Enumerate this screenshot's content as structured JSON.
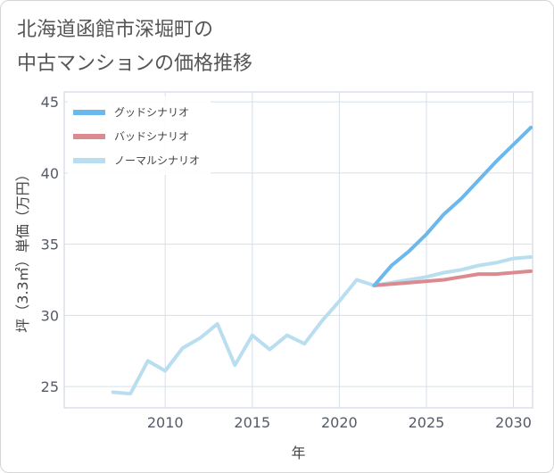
{
  "title": {
    "line1": "北海道函館市深堀町の",
    "line2": "中古マンションの価格推移"
  },
  "chart_data": {
    "type": "line",
    "xlabel": "年",
    "ylabel": "坪（3.3㎡）単価（万円）",
    "xlim": [
      2004.2,
      2031.1
    ],
    "ylim": [
      23.5,
      45.7
    ],
    "x_ticks": [
      2010,
      2015,
      2020,
      2025,
      2030
    ],
    "y_ticks": [
      25,
      30,
      35,
      40,
      45
    ],
    "grid": true,
    "legend_position": "top-left",
    "series": [
      {
        "name": "グッドシナリオ",
        "color": "#6bb8ec",
        "x": [
          2022,
          2023,
          2024,
          2025,
          2026,
          2027,
          2028,
          2029,
          2030,
          2031
        ],
        "y": [
          32.1,
          33.5,
          34.5,
          35.7,
          37.1,
          38.2,
          39.5,
          40.8,
          42.0,
          43.2
        ]
      },
      {
        "name": "バッドシナリオ",
        "color": "#db8a90",
        "x": [
          2022,
          2023,
          2024,
          2025,
          2026,
          2027,
          2028,
          2029,
          2030,
          2031
        ],
        "y": [
          32.1,
          32.2,
          32.3,
          32.4,
          32.5,
          32.7,
          32.9,
          32.9,
          33.0,
          33.1
        ]
      },
      {
        "name": "ノーマルシナリオ",
        "color": "#b9def0",
        "x": [
          2007,
          2008,
          2009,
          2010,
          2011,
          2012,
          2013,
          2014,
          2015,
          2016,
          2017,
          2018,
          2019,
          2020,
          2021,
          2022,
          2023,
          2024,
          2025,
          2026,
          2027,
          2028,
          2029,
          2030,
          2031
        ],
        "y": [
          24.6,
          24.5,
          26.8,
          26.1,
          27.7,
          28.4,
          29.4,
          26.5,
          28.6,
          27.6,
          28.6,
          28.0,
          29.6,
          31.0,
          32.5,
          32.1,
          32.3,
          32.5,
          32.7,
          33.0,
          33.2,
          33.5,
          33.7,
          34.0,
          34.1
        ]
      }
    ]
  }
}
